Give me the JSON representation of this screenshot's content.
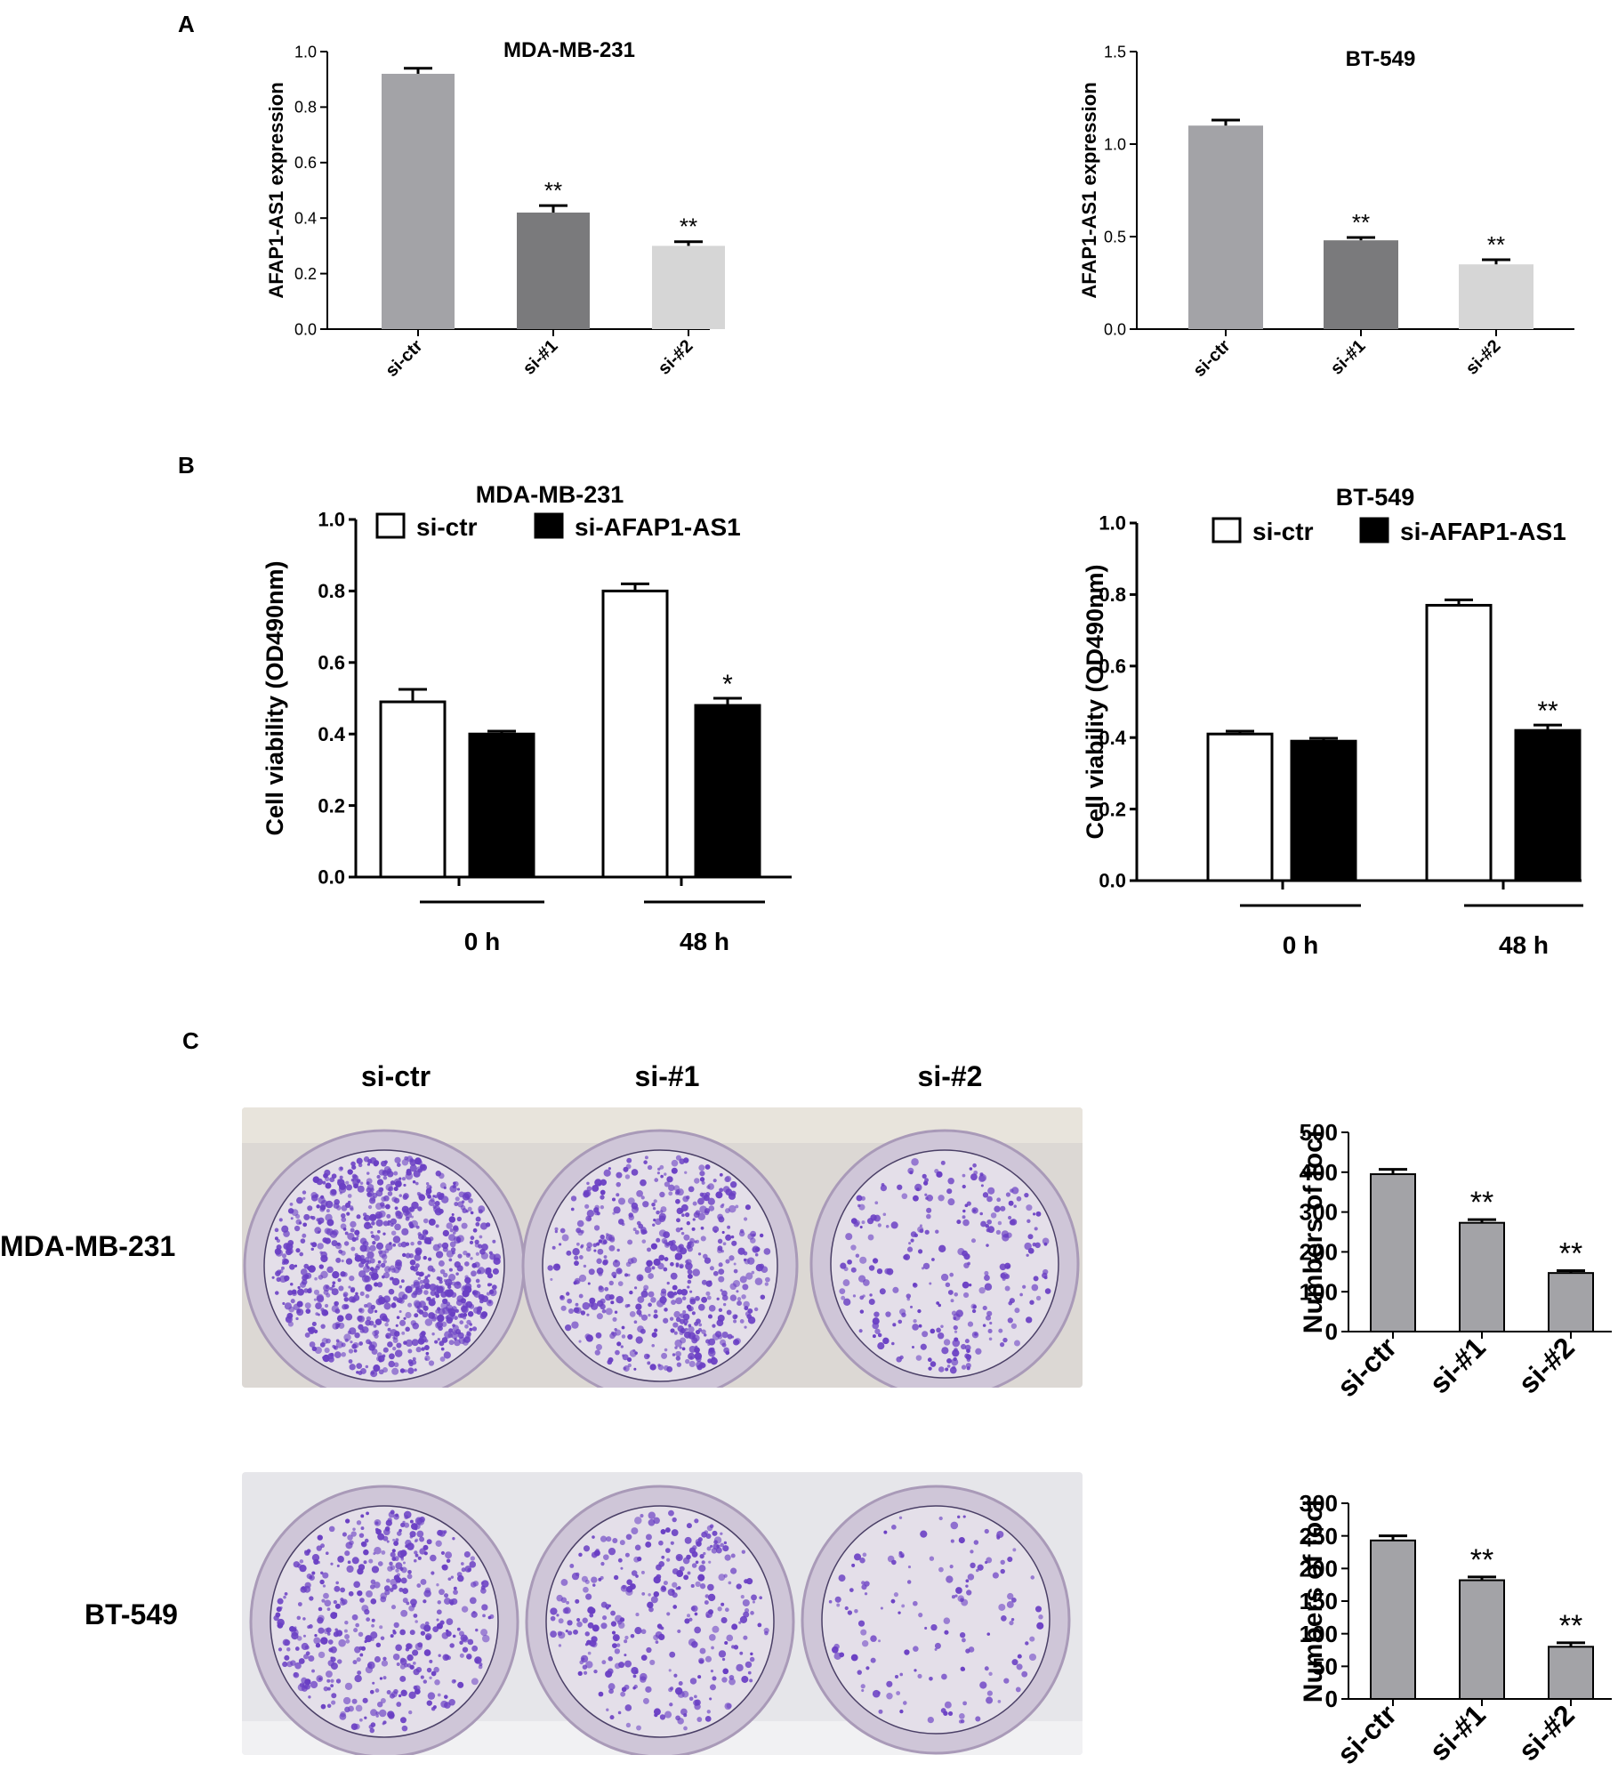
{
  "panels": {
    "A": "A",
    "B": "B",
    "C": "C"
  },
  "photos": {
    "column_labels": [
      "si-ctr",
      "si-#1",
      "si-#2"
    ],
    "row_labels": [
      "MDA-MB-231",
      "BT-549"
    ],
    "plate_color": "#e8e5e9",
    "stain_color": "#6a3fc4"
  },
  "chart_data": [
    {
      "id": "A1",
      "type": "bar",
      "title": "MDA-MB-231",
      "ylabel": "AFAP1-AS1 expression",
      "xlabel": "",
      "categories": [
        "si-ctr",
        "si-#1",
        "si-#2"
      ],
      "values": [
        0.92,
        0.42,
        0.3
      ],
      "errors": [
        0.02,
        0.025,
        0.015
      ],
      "significance": [
        "",
        "**",
        "**"
      ],
      "colors": [
        "#a3a3a7",
        "#7a7a7c",
        "#d6d6d6"
      ],
      "ylim": [
        0,
        1.0
      ],
      "yticks": [
        "0.0",
        "0.2",
        "0.4",
        "0.6",
        "0.8",
        "1.0"
      ],
      "ytick_values": [
        0,
        0.2,
        0.4,
        0.6,
        0.8,
        1.0
      ]
    },
    {
      "id": "A2",
      "type": "bar",
      "title": "BT-549",
      "ylabel": "AFAP1-AS1 expression",
      "xlabel": "",
      "categories": [
        "si-ctr",
        "si-#1",
        "si-#2"
      ],
      "values": [
        1.1,
        0.48,
        0.35
      ],
      "errors": [
        0.03,
        0.015,
        0.025
      ],
      "significance": [
        "",
        "**",
        "**"
      ],
      "colors": [
        "#a3a3a7",
        "#7a7a7c",
        "#d6d6d6"
      ],
      "ylim": [
        0,
        1.5
      ],
      "yticks": [
        "0.0",
        "0.5",
        "1.0",
        "1.5"
      ],
      "ytick_values": [
        0,
        0.5,
        1.0,
        1.5
      ]
    },
    {
      "id": "B1",
      "type": "bar",
      "title": "MDA-MB-231",
      "ylabel": "Cell viability (OD490nm)",
      "xlabel": "",
      "categories": [
        "0 h",
        "48 h"
      ],
      "series": [
        {
          "name": "si-ctr",
          "values": [
            0.49,
            0.8
          ],
          "errors": [
            0.035,
            0.02
          ],
          "significance": [
            "",
            ""
          ],
          "color": "#ffffff"
        },
        {
          "name": "si-AFAP1-AS1",
          "values": [
            0.4,
            0.48
          ],
          "errors": [
            0.008,
            0.02
          ],
          "significance": [
            "",
            "*"
          ],
          "color": "#000000"
        }
      ],
      "ylim": [
        0,
        1.0
      ],
      "yticks": [
        "0.0",
        "0.2",
        "0.4",
        "0.6",
        "0.8",
        "1.0"
      ],
      "ytick_values": [
        0,
        0.2,
        0.4,
        0.6,
        0.8,
        1.0
      ],
      "legend": "top"
    },
    {
      "id": "B2",
      "type": "bar",
      "title": "BT-549",
      "ylabel": "Cell viability (OD490nm)",
      "xlabel": "",
      "categories": [
        "0 h",
        "48 h"
      ],
      "series": [
        {
          "name": "si-ctr",
          "values": [
            0.41,
            0.77
          ],
          "errors": [
            0.008,
            0.015
          ],
          "significance": [
            "",
            ""
          ],
          "color": "#ffffff"
        },
        {
          "name": "si-AFAP1-AS1",
          "values": [
            0.39,
            0.42
          ],
          "errors": [
            0.008,
            0.015
          ],
          "significance": [
            "",
            "**"
          ],
          "color": "#000000"
        }
      ],
      "ylim": [
        0,
        1.0
      ],
      "yticks": [
        "0.0",
        "0.2",
        "0.4",
        "0.6",
        "0.8",
        "1.0"
      ],
      "ytick_values": [
        0,
        0.2,
        0.4,
        0.6,
        0.8,
        1.0
      ],
      "legend": "top"
    },
    {
      "id": "C1",
      "type": "bar",
      "title": "",
      "ylabel": "Numbers of foci",
      "xlabel": "",
      "categories": [
        "si-ctr",
        "si-#1",
        "si-#2"
      ],
      "values": [
        395,
        273,
        147
      ],
      "errors": [
        12,
        8,
        6
      ],
      "significance": [
        "",
        "**",
        "**"
      ],
      "colors": [
        "#a3a3a7",
        "#a3a3a7",
        "#a3a3a7"
      ],
      "ylim": [
        0,
        500
      ],
      "yticks": [
        "0",
        "100",
        "200",
        "300",
        "400",
        "500"
      ],
      "ytick_values": [
        0,
        100,
        200,
        300,
        400,
        500
      ]
    },
    {
      "id": "C2",
      "type": "bar",
      "title": "",
      "ylabel": "Numbers of foci",
      "xlabel": "",
      "categories": [
        "si-ctr",
        "si-#1",
        "si-#2"
      ],
      "values": [
        243,
        182,
        80
      ],
      "errors": [
        7,
        5,
        6
      ],
      "significance": [
        "",
        "**",
        "**"
      ],
      "colors": [
        "#a3a3a7",
        "#a3a3a7",
        "#a3a3a7"
      ],
      "ylim": [
        0,
        300
      ],
      "yticks": [
        "0",
        "50",
        "100",
        "150",
        "200",
        "250",
        "300"
      ],
      "ytick_values": [
        0,
        50,
        100,
        150,
        200,
        250,
        300
      ]
    }
  ]
}
